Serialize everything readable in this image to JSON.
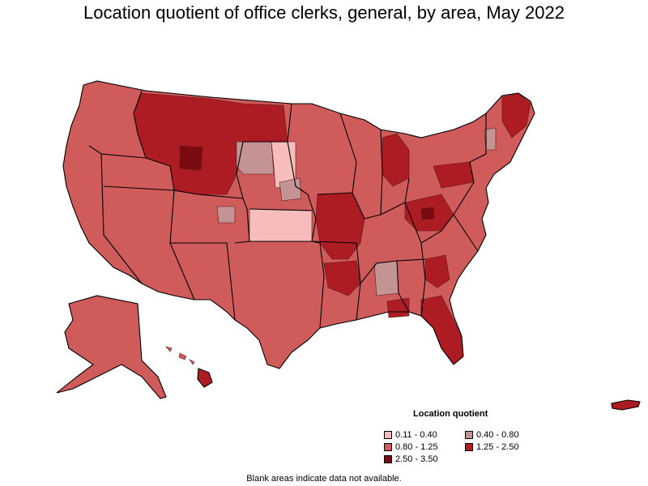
{
  "title": "Location quotient of office clerks, general, by area, May 2022",
  "legend": {
    "title": "Location quotient",
    "items": [
      {
        "label": "0.11 - 0.40",
        "color": "#f7bcbc"
      },
      {
        "label": "0.40 - 0.80",
        "color": "#c49393"
      },
      {
        "label": "0.80 - 1.25",
        "color": "#cf5b5b"
      },
      {
        "label": "1.25 - 2.50",
        "color": "#ad1c22"
      },
      {
        "label": "2.50 - 3.50",
        "color": "#7a0a0f"
      }
    ]
  },
  "footnote": "Blank areas indicate data not available."
}
